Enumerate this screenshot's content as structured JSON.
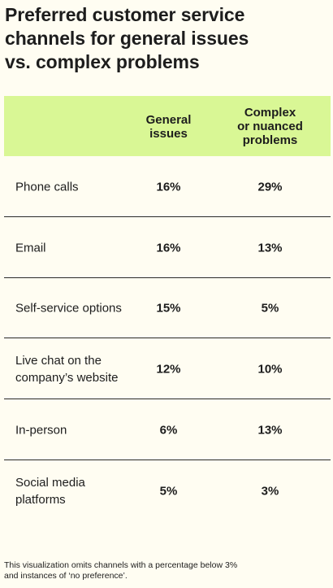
{
  "title": "Preferred customer service\nchannels for general issues\nvs. complex problems",
  "footnote": "This visualization omits channels with a percentage below 3%\nand instances of ‘no preference’.",
  "colors": {
    "background": "#fffdf2",
    "header_band": "#d9f795",
    "text": "#1d1d1d"
  },
  "chart_data": {
    "type": "table",
    "title": "Preferred customer service channels for general issues vs. complex problems",
    "columns": [
      "",
      "General\nissues",
      "Complex\nor nuanced\nproblems"
    ],
    "rows": [
      {
        "label": "Phone calls",
        "general": "16%",
        "complex": "29%"
      },
      {
        "label": "Email",
        "general": "16%",
        "complex": "13%"
      },
      {
        "label": "Self-service options",
        "general": "15%",
        "complex": "5%"
      },
      {
        "label": "Live chat on the\ncompany’s website",
        "general": "12%",
        "complex": "10%"
      },
      {
        "label": "In-person",
        "general": "6%",
        "complex": "13%"
      },
      {
        "label": "Social media\nplatforms",
        "general": "5%",
        "complex": "3%"
      }
    ],
    "series": [
      {
        "name": "General issues",
        "values": [
          16,
          16,
          15,
          12,
          6,
          5
        ]
      },
      {
        "name": "Complex or nuanced problems",
        "values": [
          29,
          13,
          5,
          10,
          13,
          3
        ]
      }
    ],
    "categories": [
      "Phone calls",
      "Email",
      "Self-service options",
      "Live chat on the company’s website",
      "In-person",
      "Social media platforms"
    ],
    "unit": "%"
  }
}
